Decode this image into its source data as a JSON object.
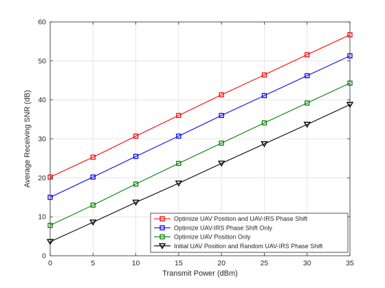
{
  "chart_data": {
    "type": "line",
    "title": "",
    "xlabel": "Transmit Power (dBm)",
    "ylabel": "Average Receiving SNR (dB)",
    "x": [
      0,
      5,
      10,
      15,
      20,
      25,
      30,
      35
    ],
    "xlim": [
      0,
      35
    ],
    "ylim": [
      0,
      60
    ],
    "xticks": [
      0,
      5,
      10,
      15,
      20,
      25,
      30,
      35
    ],
    "yticks": [
      0,
      10,
      20,
      30,
      40,
      50,
      60
    ],
    "grid": true,
    "legend_position": "bottom-right",
    "series": [
      {
        "name": "Optimize UAV Position and UAV-IRS Phase Shift",
        "color": "#ff0000",
        "marker": "square",
        "values": [
          20.2,
          25.3,
          30.7,
          36.0,
          41.3,
          46.4,
          51.6,
          56.7
        ]
      },
      {
        "name": "Optimize UAV-IRS Phase Shift Only",
        "color": "#0000ff",
        "marker": "square",
        "values": [
          15.0,
          20.2,
          25.5,
          30.7,
          36.0,
          41.1,
          46.2,
          51.3
        ]
      },
      {
        "name": "Optimize UAV Position Only",
        "color": "#008000",
        "marker": "square",
        "values": [
          7.8,
          13.0,
          18.4,
          23.7,
          28.9,
          34.1,
          39.2,
          44.3
        ]
      },
      {
        "name": "Initial UAV Position and Random UAV-IRS Phase Shift",
        "color": "#000000",
        "marker": "triangle-down",
        "values": [
          3.6,
          8.6,
          13.7,
          18.6,
          23.7,
          28.7,
          33.7,
          38.8
        ]
      }
    ]
  }
}
